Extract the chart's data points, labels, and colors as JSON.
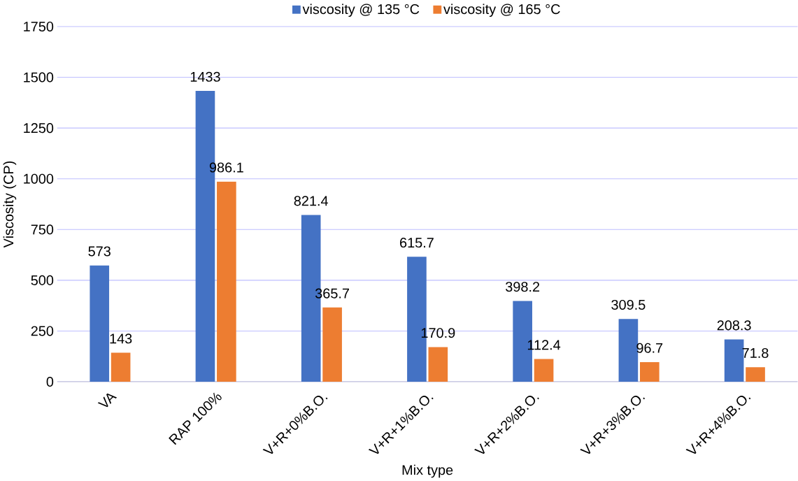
{
  "chart_data": {
    "type": "bar",
    "xlabel": "Mix type",
    "ylabel": "Viscosity (CP)",
    "categories": [
      "VA",
      "RAP 100%",
      "V+R+0%B.O.",
      "V+R+1%B.O.",
      "V+R+2%B.O.",
      "V+R+3%B.O.",
      "V+R+4%B.O."
    ],
    "series": [
      {
        "name": "viscosity @ 135 °C",
        "color": "#4472c4",
        "values": [
          573,
          1433,
          821.4,
          615.7,
          398.2,
          309.5,
          208.3
        ]
      },
      {
        "name": "viscosity @ 165 °C",
        "color": "#ed7d31",
        "values": [
          143,
          986.1,
          365.7,
          170.9,
          112.4,
          96.7,
          71.8
        ]
      }
    ],
    "ylim": [
      0,
      1750
    ],
    "yticks": [
      0,
      250,
      500,
      750,
      1000,
      1250,
      1500,
      1750
    ],
    "grid": "y",
    "legend": "top",
    "data_labels": true
  }
}
